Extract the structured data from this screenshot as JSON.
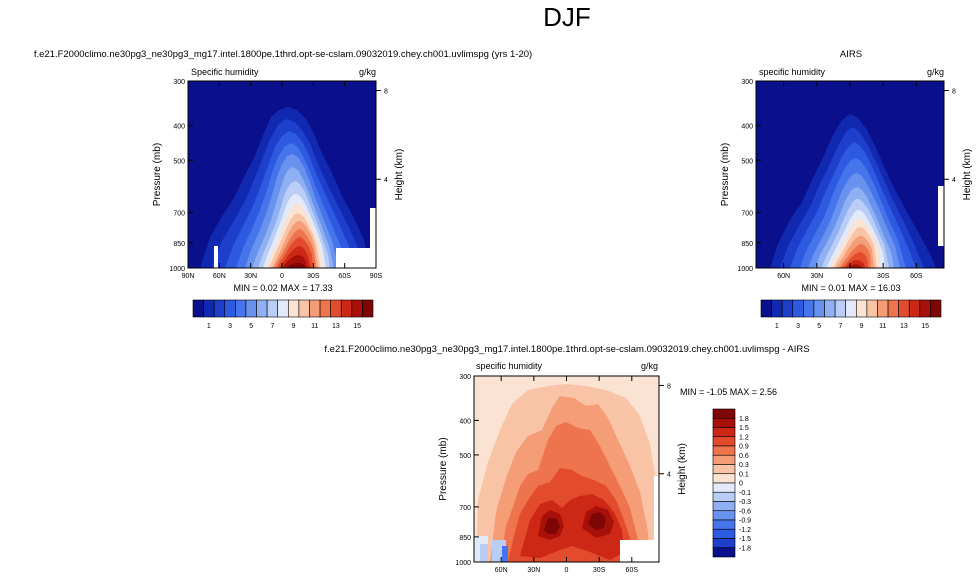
{
  "page": {
    "title": "DJF"
  },
  "chart_data": [
    {
      "type": "heatmap",
      "id": "model",
      "title": "f.e21.F2000climo.ne30pg3_ne30pg3_mg17.intel.1800pe.1thrd.opt-se-cslam.09032019.chey.ch001.uvlimspg (yrs 1-20)",
      "left_label": "Specific humidity",
      "units": "g/kg",
      "ylabel": "Pressure (mb)",
      "ylabel_right": "Height (km)",
      "x_ticks": [
        "90N",
        "60N",
        "30N",
        "0",
        "30S",
        "60S",
        "90S"
      ],
      "x_tick_values": [
        90,
        60,
        30,
        0,
        -30,
        -60,
        -90
      ],
      "xlim": [
        90,
        -90
      ],
      "y_ticks": [
        "300",
        "400",
        "500",
        "700",
        "850",
        "1000"
      ],
      "y_tick_values": [
        300,
        400,
        500,
        700,
        850,
        1000
      ],
      "ylim": [
        300,
        1000
      ],
      "height_ticks": [
        "8",
        "4"
      ],
      "height_tick_values": [
        8,
        4
      ],
      "min_text": "MIN =   0.02  MAX =  17.33",
      "min": 0.02,
      "max": 17.33,
      "colorbar": {
        "orientation": "horizontal",
        "levels": [
          0,
          1,
          2,
          3,
          4,
          5,
          6,
          7,
          8,
          9,
          10,
          11,
          12,
          13,
          14,
          15,
          16
        ],
        "labels": [
          "1",
          "3",
          "5",
          "7",
          "9",
          "11",
          "13",
          "15"
        ],
        "colors": [
          "#0a0f8c",
          "#1128b0",
          "#1d3fcc",
          "#2d5ae0",
          "#4674ea",
          "#6992ee",
          "#8fb0f2",
          "#b9cdf6",
          "#e2eaf9",
          "#fbe3d4",
          "#f9c3a6",
          "#f49d76",
          "#ee744e",
          "#e34b2d",
          "#cc2815",
          "#a8110a",
          "#7f0606"
        ]
      }
    },
    {
      "type": "heatmap",
      "id": "obs",
      "title": "AIRS",
      "left_label": "specific humidity",
      "units": "g/kg",
      "ylabel": "Pressure (mb)",
      "ylabel_right": "Height (km)",
      "x_ticks": [
        "60N",
        "30N",
        "0",
        "30S",
        "60S"
      ],
      "x_tick_values": [
        60,
        30,
        0,
        -30,
        -60
      ],
      "xlim": [
        85,
        -85
      ],
      "y_ticks": [
        "300",
        "400",
        "500",
        "700",
        "850",
        "1000"
      ],
      "y_tick_values": [
        300,
        400,
        500,
        700,
        850,
        1000
      ],
      "ylim": [
        300,
        1000
      ],
      "height_ticks": [
        "8",
        "4"
      ],
      "height_tick_values": [
        8,
        4
      ],
      "min_text": "MIN =   0.01  MAX =  16.03",
      "min": 0.01,
      "max": 16.03,
      "colorbar": {
        "orientation": "horizontal",
        "levels": [
          0,
          1,
          2,
          3,
          4,
          5,
          6,
          7,
          8,
          9,
          10,
          11,
          12,
          13,
          14,
          15,
          16
        ],
        "labels": [
          "1",
          "3",
          "5",
          "7",
          "9",
          "11",
          "13",
          "15"
        ],
        "colors": [
          "#0a0f8c",
          "#1128b0",
          "#1d3fcc",
          "#2d5ae0",
          "#4674ea",
          "#6992ee",
          "#8fb0f2",
          "#b9cdf6",
          "#e2eaf9",
          "#fbe3d4",
          "#f9c3a6",
          "#f49d76",
          "#ee744e",
          "#e34b2d",
          "#cc2815",
          "#a8110a",
          "#7f0606"
        ]
      }
    },
    {
      "type": "heatmap",
      "id": "diff",
      "title": "f.e21.F2000climo.ne30pg3_ne30pg3_mg17.intel.1800pe.1thrd.opt-se-cslam.09032019.chey.ch001.uvlimspg - AIRS",
      "left_label": "specific humidity",
      "units": "g/kg",
      "ylabel": "Pressure (mb)",
      "ylabel_right": "Height (km)",
      "x_ticks": [
        "60N",
        "30N",
        "0",
        "30S",
        "60S"
      ],
      "x_tick_values": [
        60,
        30,
        0,
        -30,
        -60
      ],
      "xlim": [
        85,
        -85
      ],
      "y_ticks": [
        "300",
        "400",
        "500",
        "700",
        "850",
        "1000"
      ],
      "y_tick_values": [
        300,
        400,
        500,
        700,
        850,
        1000
      ],
      "ylim": [
        300,
        1000
      ],
      "height_ticks": [
        "8",
        "4"
      ],
      "height_tick_values": [
        8,
        4
      ],
      "min_text": "MIN =  -1.05  MAX =   2.56",
      "min": -1.05,
      "max": 2.56,
      "colorbar": {
        "orientation": "vertical",
        "labels": [
          "1.8",
          "1.5",
          "1.2",
          "0.9",
          "0.6",
          "0.3",
          "0.1",
          "0",
          "-0.1",
          "-0.3",
          "-0.6",
          "-0.9",
          "-1.2",
          "-1.5",
          "-1.8"
        ],
        "colors": [
          "#7f0606",
          "#a8110a",
          "#cc2815",
          "#e34b2d",
          "#ee744e",
          "#f49d76",
          "#f9c3a6",
          "#fbe3d4",
          "#e2eaf9",
          "#b9cdf6",
          "#8fb0f2",
          "#6992ee",
          "#4674ea",
          "#2d5ae0",
          "#1d3fcc",
          "#0a0f8c"
        ]
      }
    }
  ]
}
